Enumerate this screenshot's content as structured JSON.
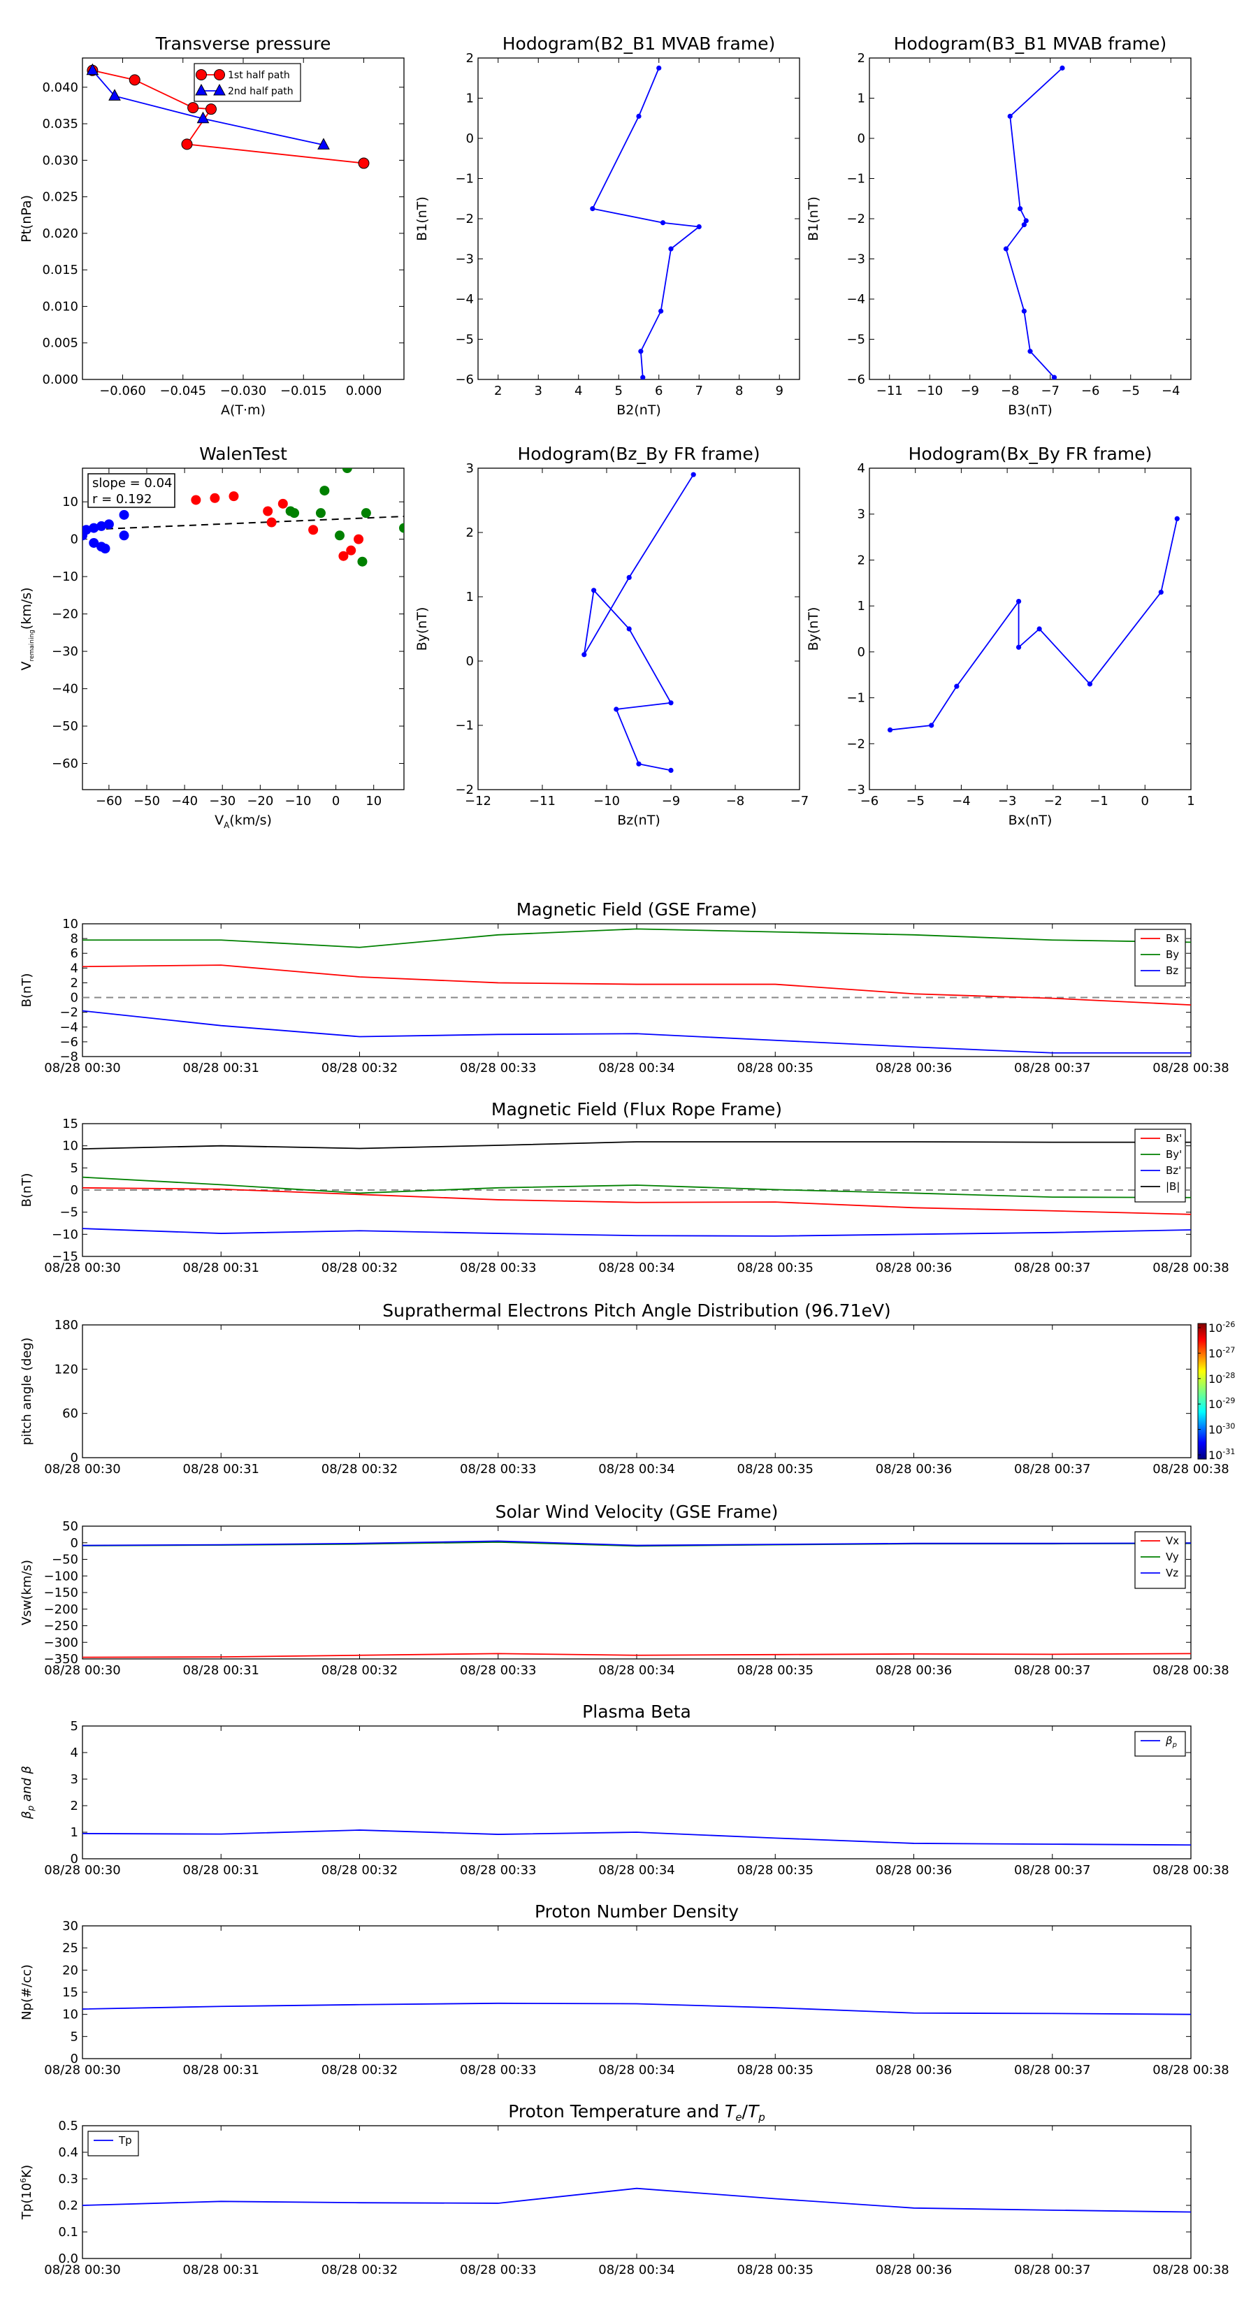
{
  "chart_data": [
    {
      "id": "tp",
      "type": "line",
      "title": "Transverse pressure",
      "xlabel": "A(T·m)",
      "ylabel": "Pt(nPa)",
      "xlim": [
        -0.07,
        0.01
      ],
      "ylim": [
        0.0,
        0.044
      ],
      "xticks": [
        -0.06,
        -0.045,
        -0.03,
        -0.015,
        0.0
      ],
      "xtick_labels": [
        "−0.060",
        "−0.045",
        "−0.030",
        "−0.015",
        "0.000"
      ],
      "yticks": [
        0.0,
        0.005,
        0.01,
        0.015,
        0.02,
        0.025,
        0.03,
        0.035,
        0.04
      ],
      "ytick_labels": [
        "0.000",
        "0.005",
        "0.010",
        "0.015",
        "0.020",
        "0.025",
        "0.030",
        "0.035",
        "0.040"
      ],
      "legend_position": "top-center",
      "series": [
        {
          "name": "1st half path",
          "color": "#ff0000",
          "marker": "circle",
          "x": [
            -0.0675,
            -0.057,
            -0.0425,
            -0.038,
            -0.044,
            0.0
          ],
          "y": [
            0.0423,
            0.041,
            0.0372,
            0.037,
            0.0322,
            0.0296
          ]
        },
        {
          "name": "2nd half path",
          "color": "#0000ff",
          "marker": "triangle",
          "x": [
            -0.0675,
            -0.062,
            -0.04,
            -0.01
          ],
          "y": [
            0.0423,
            0.0388,
            0.0357,
            0.0321
          ]
        }
      ]
    },
    {
      "id": "hodo-b2b1",
      "type": "line",
      "title": "Hodogram(B2_B1 MVAB frame)",
      "xlabel": "B2(nT)",
      "ylabel": "B1(nT)",
      "xlim": [
        1.5,
        9.5
      ],
      "ylim": [
        -6,
        2
      ],
      "xticks": [
        2,
        3,
        4,
        5,
        6,
        7,
        8,
        9
      ],
      "yticks": [
        -6,
        -5,
        -4,
        -3,
        -2,
        -1,
        0,
        1,
        2
      ],
      "series": [
        {
          "color": "#0000ff",
          "marker": "dot",
          "x": [
            6.0,
            5.5,
            4.35,
            6.1,
            7.0,
            6.3,
            6.05,
            5.55,
            5.6
          ],
          "y": [
            1.75,
            0.55,
            -1.75,
            -2.1,
            -2.2,
            -2.75,
            -4.3,
            -5.3,
            -5.95
          ]
        }
      ]
    },
    {
      "id": "hodo-b3b1",
      "type": "line",
      "title": "Hodogram(B3_B1 MVAB frame)",
      "xlabel": "B3(nT)",
      "ylabel": "B1(nT)",
      "xlim": [
        -11.5,
        -3.5
      ],
      "ylim": [
        -6,
        2
      ],
      "xticks": [
        -11,
        -10,
        -9,
        -8,
        -7,
        -6,
        -5,
        -4
      ],
      "yticks": [
        -6,
        -5,
        -4,
        -3,
        -2,
        -1,
        0,
        1,
        2
      ],
      "series": [
        {
          "color": "#0000ff",
          "marker": "dot",
          "x": [
            -6.7,
            -8.0,
            -7.75,
            -7.6,
            -7.65,
            -8.1,
            -7.65,
            -7.5,
            -6.9
          ],
          "y": [
            1.75,
            0.55,
            -1.75,
            -2.05,
            -2.15,
            -2.75,
            -4.3,
            -5.3,
            -5.95
          ]
        }
      ]
    },
    {
      "id": "walen",
      "type": "scatter",
      "title": "WalenTest",
      "xlabel": "V",
      "xlabel_sub": "A",
      "xlabel_suffix": "(km/s)",
      "ylabel": "V",
      "ylabel_sub": "remaining",
      "ylabel_suffix": "(km/s)",
      "xlim": [
        -67,
        18
      ],
      "ylim": [
        -67,
        19
      ],
      "xticks": [
        -60,
        -50,
        -40,
        -30,
        -20,
        -10,
        0,
        10
      ],
      "yticks": [
        -60,
        -50,
        -40,
        -30,
        -20,
        -10,
        0,
        10
      ],
      "annotation": {
        "slope": "slope = 0.04",
        "r": "r = 0.192"
      },
      "fit_line": {
        "x": [
          -67,
          18
        ],
        "y": [
          2.5,
          6.1
        ]
      },
      "series": [
        {
          "color": "#0000ff",
          "x": [
            -67,
            -66,
            -64,
            -62,
            -61,
            -60,
            -56,
            -56,
            -64,
            -62
          ],
          "y": [
            1,
            2.5,
            -1,
            -2,
            -2.5,
            4,
            1,
            6.5,
            3,
            3.5
          ]
        },
        {
          "color": "#ff0000",
          "x": [
            -37,
            -32,
            -27,
            -18,
            -17,
            -14,
            -6,
            2,
            4,
            6
          ],
          "y": [
            10.5,
            11,
            11.5,
            7.5,
            4.5,
            9.5,
            2.5,
            -4.5,
            -3,
            0
          ]
        },
        {
          "color": "#008000",
          "x": [
            -12,
            -11,
            -4,
            -3,
            1,
            3,
            7,
            8,
            18
          ],
          "y": [
            7.5,
            7,
            7,
            13,
            1,
            19,
            -6,
            7,
            3
          ]
        }
      ]
    },
    {
      "id": "hodo-bzby",
      "type": "line",
      "title": "Hodogram(Bz_By FR frame)",
      "xlabel": "Bz(nT)",
      "ylabel": "By(nT)",
      "xlim": [
        -12,
        -7
      ],
      "ylim": [
        -2,
        3
      ],
      "xticks": [
        -12,
        -11,
        -10,
        -9,
        -8,
        -7
      ],
      "yticks": [
        -2,
        -1,
        0,
        1,
        2,
        3
      ],
      "series": [
        {
          "color": "#0000ff",
          "marker": "dot",
          "x": [
            -8.65,
            -9.65,
            -10.35,
            -10.2,
            -9.65,
            -9.0,
            -9.85,
            -9.5,
            -9.0
          ],
          "y": [
            2.9,
            1.3,
            0.1,
            1.1,
            0.5,
            -0.65,
            -0.75,
            -1.6,
            -1.7
          ]
        }
      ]
    },
    {
      "id": "hodo-bxby",
      "type": "line",
      "title": "Hodogram(Bx_By FR frame)",
      "xlabel": "Bx(nT)",
      "ylabel": "By(nT)",
      "xlim": [
        -6,
        1
      ],
      "ylim": [
        -3,
        4
      ],
      "xticks": [
        -6,
        -5,
        -4,
        -3,
        -2,
        -1,
        0,
        1
      ],
      "yticks": [
        -3,
        -2,
        -1,
        0,
        1,
        2,
        3,
        4
      ],
      "series": [
        {
          "color": "#0000ff",
          "marker": "dot",
          "x": [
            0.7,
            0.35,
            -1.2,
            -2.3,
            -2.75,
            -2.75,
            -4.1,
            -4.65,
            -5.55
          ],
          "y": [
            2.9,
            1.3,
            -0.7,
            0.5,
            0.1,
            1.1,
            -0.75,
            -1.6,
            -1.7
          ]
        }
      ]
    },
    {
      "id": "mag-gse",
      "type": "line",
      "title": "Magnetic Field (GSE Frame)",
      "ylabel": "B(nT)",
      "x": [
        "08/28 00:30",
        "08/28 00:31",
        "08/28 00:32",
        "08/28 00:33",
        "08/28 00:34",
        "08/28 00:35",
        "08/28 00:36",
        "08/28 00:37",
        "08/28 00:38"
      ],
      "ylim": [
        -8,
        10
      ],
      "yticks": [
        -8,
        -6,
        -4,
        -2,
        0,
        2,
        4,
        6,
        8,
        10
      ],
      "zero_line": true,
      "legend_position": "top-right",
      "series": [
        {
          "name": "Bx",
          "color": "#ff0000",
          "values": [
            4.2,
            4.4,
            2.8,
            2.0,
            1.8,
            1.8,
            0.5,
            -0.1,
            -1.0
          ]
        },
        {
          "name": "By",
          "color": "#008000",
          "values": [
            7.8,
            7.8,
            6.8,
            8.5,
            9.3,
            8.9,
            8.5,
            7.8,
            7.5
          ]
        },
        {
          "name": "Bz",
          "color": "#0000ff",
          "values": [
            -1.8,
            -3.8,
            -5.3,
            -5.0,
            -4.9,
            -5.8,
            -6.7,
            -7.5,
            -7.5
          ]
        }
      ]
    },
    {
      "id": "mag-fr",
      "type": "line",
      "title": "Magnetic Field (Flux Rope Frame)",
      "ylabel": "B(nT)",
      "x": [
        "08/28 00:30",
        "08/28 00:31",
        "08/28 00:32",
        "08/28 00:33",
        "08/28 00:34",
        "08/28 00:35",
        "08/28 00:36",
        "08/28 00:37",
        "08/28 00:38"
      ],
      "ylim": [
        -15,
        15
      ],
      "yticks": [
        -15,
        -10,
        -5,
        0,
        5,
        10,
        15
      ],
      "zero_line": true,
      "legend_position": "top-right",
      "series": [
        {
          "name": "Bx'",
          "color": "#ff0000",
          "values": [
            0.5,
            0.2,
            -1.0,
            -2.2,
            -2.8,
            -2.7,
            -4.0,
            -4.7,
            -5.5
          ]
        },
        {
          "name": "By'",
          "color": "#008000",
          "values": [
            2.9,
            1.2,
            -0.7,
            0.5,
            1.1,
            0.1,
            -0.7,
            -1.6,
            -1.7
          ]
        },
        {
          "name": "Bz'",
          "color": "#0000ff",
          "values": [
            -8.7,
            -9.8,
            -9.2,
            -9.8,
            -10.3,
            -10.4,
            -10.0,
            -9.6,
            -9.0
          ]
        },
        {
          "name": "|B|",
          "color": "#000000",
          "values": [
            9.3,
            10.0,
            9.4,
            10.1,
            10.9,
            10.9,
            10.9,
            10.8,
            10.8
          ]
        }
      ]
    },
    {
      "id": "pad",
      "type": "heatmap",
      "title": "Suprathermal Electrons Pitch Angle Distribution (96.71eV)",
      "ylabel": "pitch angle (deg)",
      "x": [
        "08/28 00:30",
        "08/28 00:31",
        "08/28 00:32",
        "08/28 00:33",
        "08/28 00:34",
        "08/28 00:35",
        "08/28 00:36",
        "08/28 00:37",
        "08/28 00:38"
      ],
      "ylim": [
        0,
        180
      ],
      "yticks": [
        0,
        60,
        120,
        180
      ],
      "colorbar": {
        "labels": [
          "10",
          "10",
          "10",
          "10",
          "10",
          "10"
        ],
        "exponents": [
          "-26",
          "-27",
          "-28",
          "-29",
          "-30",
          "-31"
        ]
      }
    },
    {
      "id": "vsw",
      "type": "line",
      "title": "Solar Wind Velocity (GSE Frame)",
      "ylabel": "Vsw(km/s)",
      "x": [
        "08/28 00:30",
        "08/28 00:31",
        "08/28 00:32",
        "08/28 00:33",
        "08/28 00:34",
        "08/28 00:35",
        "08/28 00:36",
        "08/28 00:37",
        "08/28 00:38"
      ],
      "ylim": [
        -350,
        50
      ],
      "yticks": [
        -350,
        -300,
        -250,
        -200,
        -150,
        -100,
        -50,
        0,
        50
      ],
      "ytick_labels": [
        "−350",
        "−300",
        "−250",
        "−200",
        "−150",
        "−100",
        "−50",
        "0",
        "50"
      ],
      "legend_position": "top-right",
      "series": [
        {
          "name": "Vx",
          "color": "#ff0000",
          "values": [
            -345,
            -344,
            -339,
            -334,
            -339,
            -337,
            -335,
            -336,
            -334
          ]
        },
        {
          "name": "Vy",
          "color": "#008000",
          "values": [
            -9,
            -7,
            -4,
            2,
            -10,
            -6,
            -3,
            -3,
            -2
          ]
        },
        {
          "name": "Vz",
          "color": "#0000ff",
          "values": [
            -8,
            -6,
            -2,
            5,
            -8,
            -5,
            -2,
            -2,
            -1
          ]
        }
      ]
    },
    {
      "id": "beta",
      "type": "line",
      "title": "Plasma Beta",
      "ylabel": "β",
      "ylabel_sub": "p",
      "ylabel_suffix": " and β",
      "x": [
        "08/28 00:30",
        "08/28 00:31",
        "08/28 00:32",
        "08/28 00:33",
        "08/28 00:34",
        "08/28 00:35",
        "08/28 00:36",
        "08/28 00:37",
        "08/28 00:38"
      ],
      "ylim": [
        0,
        5
      ],
      "yticks": [
        0,
        1,
        2,
        3,
        4,
        5
      ],
      "legend_position": "top-right",
      "series": [
        {
          "name": "β",
          "name_sub": "p",
          "color": "#0000ff",
          "values": [
            0.95,
            0.93,
            1.08,
            0.92,
            1.0,
            0.78,
            0.58,
            0.55,
            0.52
          ]
        }
      ]
    },
    {
      "id": "np",
      "type": "line",
      "title": "Proton Number Density",
      "ylabel": "Np(#/cc)",
      "x": [
        "08/28 00:30",
        "08/28 00:31",
        "08/28 00:32",
        "08/28 00:33",
        "08/28 00:34",
        "08/28 00:35",
        "08/28 00:36",
        "08/28 00:37",
        "08/28 00:38"
      ],
      "ylim": [
        0,
        30
      ],
      "yticks": [
        0,
        5,
        10,
        15,
        20,
        25,
        30
      ],
      "series": [
        {
          "color": "#0000ff",
          "values": [
            11.2,
            11.8,
            12.2,
            12.5,
            12.4,
            11.5,
            10.3,
            10.2,
            10.0
          ]
        }
      ]
    },
    {
      "id": "temp",
      "type": "line",
      "title": "Proton Temperature and ",
      "title_math": "T",
      "title_sub1": "e",
      "title_slash": "/",
      "title_math2": "T",
      "title_sub2": "p",
      "ylabel": "Tp(10",
      "ylabel_exp": "6",
      "ylabel_suffix": "K)",
      "x": [
        "08/28 00:30",
        "08/28 00:31",
        "08/28 00:32",
        "08/28 00:33",
        "08/28 00:34",
        "08/28 00:35",
        "08/28 00:36",
        "08/28 00:37",
        "08/28 00:38"
      ],
      "ylim": [
        0,
        0.5
      ],
      "yticks": [
        0.0,
        0.1,
        0.2,
        0.3,
        0.4,
        0.5
      ],
      "ytick_labels": [
        "0.0",
        "0.1",
        "0.2",
        "0.3",
        "0.4",
        "0.5"
      ],
      "legend_position": "top-left",
      "series": [
        {
          "name": "Tp",
          "color": "#0000ff",
          "values": [
            0.2,
            0.215,
            0.21,
            0.208,
            0.264,
            0.225,
            0.19,
            0.182,
            0.175
          ]
        }
      ]
    }
  ]
}
